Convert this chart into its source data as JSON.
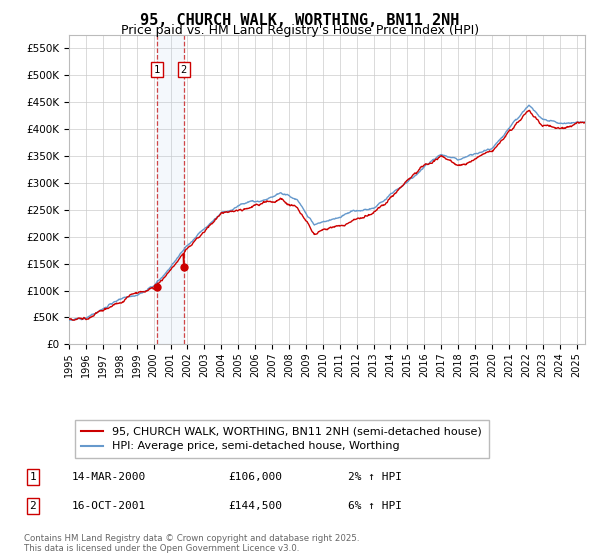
{
  "title": "95, CHURCH WALK, WORTHING, BN11 2NH",
  "subtitle": "Price paid vs. HM Land Registry's House Price Index (HPI)",
  "ylabel_vals": [
    0,
    50000,
    100000,
    150000,
    200000,
    250000,
    300000,
    350000,
    400000,
    450000,
    500000,
    550000
  ],
  "ylim": [
    0,
    575000
  ],
  "xlim_start": 1995.0,
  "xlim_end": 2025.5,
  "xtick_years": [
    1995,
    1996,
    1997,
    1998,
    1999,
    2000,
    2001,
    2002,
    2003,
    2004,
    2005,
    2006,
    2007,
    2008,
    2009,
    2010,
    2011,
    2012,
    2013,
    2014,
    2015,
    2016,
    2017,
    2018,
    2019,
    2020,
    2021,
    2022,
    2023,
    2024,
    2025
  ],
  "sale1_x": 2000.2,
  "sale1_y": 106000,
  "sale1_label": "1",
  "sale1_date": "14-MAR-2000",
  "sale1_price": "£106,000",
  "sale1_hpi": "2% ↑ HPI",
  "sale2_x": 2001.79,
  "sale2_y": 144500,
  "sale2_label": "2",
  "sale2_date": "16-OCT-2001",
  "sale2_price": "£144,500",
  "sale2_hpi": "6% ↑ HPI",
  "line1_color": "#cc0000",
  "line2_color": "#6699cc",
  "vline_color": "#cc3333",
  "grid_color": "#cccccc",
  "bg_color": "#ffffff",
  "legend1_label": "95, CHURCH WALK, WORTHING, BN11 2NH (semi-detached house)",
  "legend2_label": "HPI: Average price, semi-detached house, Worthing",
  "footnote": "Contains HM Land Registry data © Crown copyright and database right 2025.\nThis data is licensed under the Open Government Licence v3.0.",
  "title_fontsize": 11,
  "subtitle_fontsize": 9,
  "axis_fontsize": 7.5,
  "legend_fontsize": 8
}
